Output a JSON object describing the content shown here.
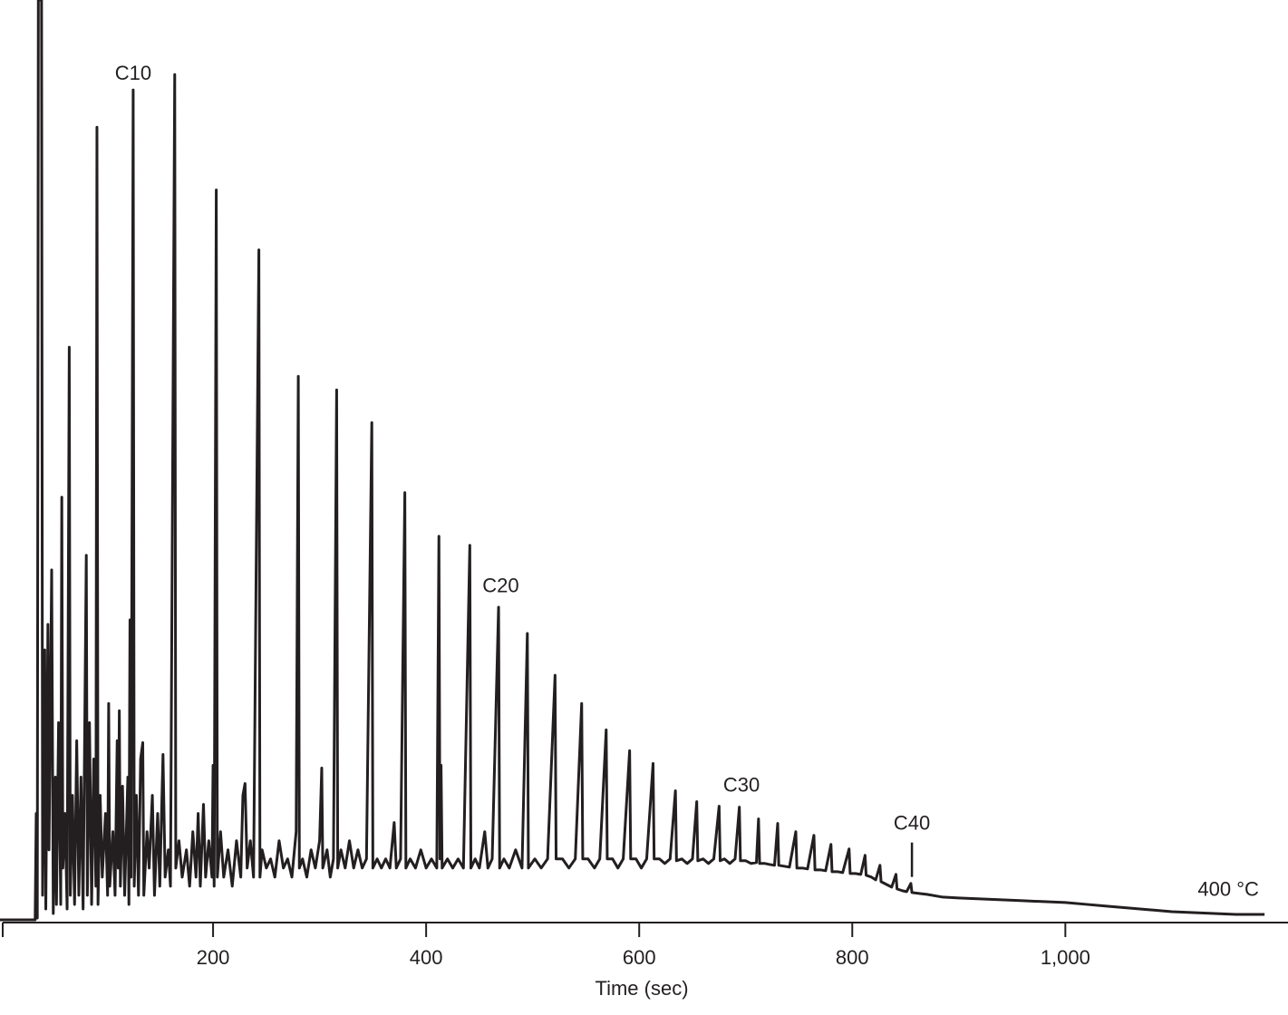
{
  "chart_data": {
    "type": "line",
    "x_label": "Time (sec)",
    "color": "#231f20",
    "xlim": [
      0,
      1209
    ],
    "ylim": [
      0,
      100
    ],
    "xticks": [
      200,
      400,
      600,
      800,
      {
        "value": 1000,
        "label": "1,000"
      }
    ],
    "annotations": [
      {
        "text": "C10",
        "x": 125,
        "y": 93.3
      },
      {
        "text": "C20",
        "x": 470,
        "y": 36.9
      },
      {
        "text": "C30",
        "x": 696,
        "y": 15.0
      },
      {
        "text": "C40",
        "x": 856,
        "y": 10.8,
        "marker": true
      },
      {
        "text": "400 °C",
        "x": 1153,
        "y": 3.5
      }
    ],
    "x": [
      0,
      33,
      34,
      35,
      36,
      39,
      40,
      42,
      43,
      45,
      46,
      48.5,
      50,
      52,
      53,
      55,
      57,
      58,
      59,
      61,
      63,
      65,
      66,
      68,
      70,
      72,
      74,
      76,
      78,
      81,
      82,
      84,
      86,
      88,
      90,
      91,
      92,
      94,
      96,
      99,
      101,
      102,
      103,
      106,
      108,
      110,
      111,
      112,
      113,
      115,
      117,
      120,
      121,
      122,
      123,
      125,
      126,
      128,
      130,
      132,
      134,
      135,
      138,
      140,
      143,
      145,
      148,
      150,
      153,
      155,
      158,
      160,
      164,
      165,
      168,
      171,
      175,
      178,
      181,
      184,
      186,
      188,
      191,
      193,
      196,
      199,
      200,
      201,
      203,
      204,
      207,
      210,
      214,
      218,
      222,
      226,
      228,
      230,
      232,
      235,
      238,
      243,
      244,
      246,
      250,
      254,
      258,
      262,
      266,
      270,
      274,
      278,
      280,
      281,
      284,
      288,
      292,
      296,
      300,
      302,
      303,
      307,
      310,
      313,
      316,
      317,
      320,
      324,
      328,
      332,
      336,
      340,
      344,
      349,
      350,
      354,
      358,
      362,
      366,
      370,
      372,
      376,
      380,
      381,
      385,
      390,
      395,
      400,
      405,
      410,
      412,
      413,
      414,
      415,
      420,
      425,
      430,
      435,
      441,
      442,
      446,
      450,
      455,
      458,
      462,
      468,
      469,
      473,
      478,
      484,
      490,
      495,
      496,
      502,
      508,
      514,
      521,
      522,
      528,
      534,
      540,
      546,
      547,
      552,
      558,
      563,
      569,
      570,
      575,
      580,
      585,
      591,
      592,
      597,
      602,
      607,
      613,
      614,
      619,
      624,
      629,
      634,
      635,
      640,
      645,
      650,
      654,
      655,
      660,
      665,
      670,
      675,
      676,
      680,
      685,
      690,
      694,
      695,
      700,
      705,
      710,
      712,
      713,
      718,
      722,
      727,
      730,
      731,
      736,
      741,
      747,
      748,
      753,
      758,
      764,
      765,
      770,
      775,
      780,
      781,
      786,
      791,
      797,
      798,
      803,
      808,
      812,
      813,
      818,
      822,
      826,
      827,
      832,
      837,
      841,
      842,
      847,
      851,
      855,
      856,
      870,
      885,
      900,
      920,
      940,
      960,
      980,
      1000,
      1020,
      1040,
      1060,
      1080,
      1100,
      1120,
      1140,
      1160,
      1187
    ],
    "values": [
      0.3,
      0.3,
      12,
      0.5,
      101.5,
      101.5,
      3,
      30,
      1.5,
      32.8,
      8,
      38.8,
      1,
      16,
      2,
      22,
      2,
      46.8,
      6,
      12,
      1.5,
      63.3,
      3,
      14,
      2,
      20,
      3,
      16,
      1.5,
      40.4,
      3,
      22,
      2,
      18,
      4,
      87.5,
      2,
      14,
      5,
      12,
      3,
      24.1,
      4,
      10,
      3,
      20,
      6,
      23.3,
      4,
      15,
      3,
      16,
      2,
      33.3,
      5,
      91.6,
      4,
      14,
      3,
      18,
      19.8,
      3,
      10,
      6,
      14,
      3,
      12,
      4,
      18.5,
      5,
      8,
      4,
      93.3,
      6,
      9,
      5,
      8,
      4,
      10,
      5,
      12,
      4,
      13,
      5,
      9,
      5,
      17.3,
      4,
      80.6,
      5,
      10,
      5,
      8,
      4,
      9,
      5,
      14,
      15.3,
      6,
      9,
      5,
      74,
      5,
      8,
      6,
      7,
      5,
      9,
      6,
      7,
      5,
      10,
      60.1,
      6,
      7,
      5,
      8,
      6,
      9,
      17,
      6,
      8,
      5,
      7,
      58.6,
      6,
      8,
      6,
      9,
      6,
      8,
      6,
      7,
      55,
      6,
      7,
      6,
      7,
      6,
      11,
      6,
      7,
      47.3,
      6,
      7,
      6,
      8,
      6,
      7,
      6,
      42.5,
      7,
      17.3,
      6,
      7,
      6,
      7,
      6,
      41.5,
      6,
      7,
      6,
      10,
      6,
      7,
      34.7,
      6,
      7,
      6,
      8,
      6,
      31.8,
      6,
      7,
      6,
      7,
      27.2,
      7,
      7,
      6,
      7,
      24.1,
      7,
      7,
      6,
      7,
      21.2,
      7,
      7,
      6,
      7,
      18.9,
      7,
      7,
      6,
      7,
      17.5,
      7,
      7,
      6.5,
      7,
      14.5,
      6.8,
      7,
      6.5,
      7,
      13.3,
      6.8,
      7,
      6.5,
      7,
      12.8,
      6.8,
      7,
      6.5,
      7,
      12.7,
      6.8,
      6.8,
      6.5,
      6.6,
      11.4,
      6.5,
      6.5,
      6.4,
      6.3,
      10.9,
      6.3,
      6.2,
      6.1,
      10,
      6,
      6,
      5.9,
      9.6,
      5.8,
      5.8,
      5.7,
      8.6,
      5.6,
      5.6,
      5.5,
      8.1,
      5.4,
      5.4,
      5.3,
      7.4,
      5.2,
      5,
      4.7,
      6.3,
      4.5,
      4.2,
      3.9,
      5.3,
      3.7,
      3.5,
      3.4,
      4.3,
      3.3,
      3.1,
      2.8,
      2.7,
      2.6,
      2.5,
      2.4,
      2.3,
      2.2,
      2,
      1.8,
      1.6,
      1.4,
      1.2,
      1.1,
      1.0,
      0.9,
      0.9
    ]
  }
}
